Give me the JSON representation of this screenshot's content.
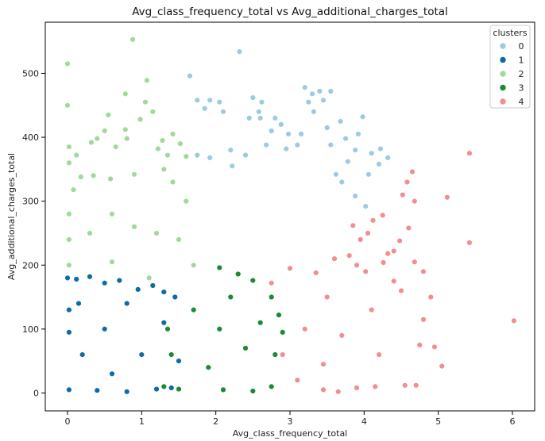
{
  "chart_data": {
    "type": "scatter",
    "title": "Avg_class_frequency_total vs Avg_additional_charges_total",
    "xlabel": "Avg_class_frequency_total",
    "ylabel": "Avg_additional_charges_total",
    "xlim": [
      -0.3,
      6.3
    ],
    "ylim": [
      -28,
      580
    ],
    "xticks": [
      "0",
      "1",
      "2",
      "3",
      "4",
      "5",
      "6"
    ],
    "yticks": [
      "0",
      "100",
      "200",
      "300",
      "400",
      "500"
    ],
    "grid": false,
    "legend": {
      "title": "clusters",
      "placement": "top-right"
    },
    "series": [
      {
        "name": "0",
        "color": "#9ecae1",
        "points": [
          [
            1.65,
            496
          ],
          [
            2.32,
            534
          ],
          [
            1.75,
            458
          ],
          [
            1.85,
            445
          ],
          [
            1.92,
            458
          ],
          [
            2.05,
            455
          ],
          [
            2.1,
            440
          ],
          [
            2.5,
            462
          ],
          [
            2.62,
            455
          ],
          [
            2.58,
            440
          ],
          [
            2.6,
            430
          ],
          [
            2.45,
            430
          ],
          [
            2.8,
            430
          ],
          [
            2.75,
            410
          ],
          [
            2.88,
            420
          ],
          [
            3.2,
            478
          ],
          [
            3.3,
            468
          ],
          [
            3.4,
            472
          ],
          [
            3.55,
            472
          ],
          [
            3.45,
            458
          ],
          [
            3.25,
            455
          ],
          [
            3.32,
            440
          ],
          [
            3.68,
            425
          ],
          [
            3.98,
            432
          ],
          [
            3.5,
            415
          ],
          [
            3.15,
            405
          ],
          [
            3.92,
            405
          ],
          [
            3.75,
            398
          ],
          [
            3.88,
            380
          ],
          [
            4.1,
            375
          ],
          [
            4.22,
            382
          ],
          [
            4.32,
            368
          ],
          [
            4.2,
            358
          ],
          [
            4.06,
            342
          ],
          [
            3.78,
            362
          ],
          [
            3.62,
            342
          ],
          [
            3.7,
            330
          ],
          [
            3.88,
            308
          ],
          [
            4.02,
            292
          ],
          [
            3.55,
            388
          ],
          [
            3.1,
            388
          ],
          [
            2.95,
            382
          ],
          [
            2.68,
            388
          ],
          [
            2.4,
            372
          ],
          [
            2.2,
            380
          ],
          [
            1.75,
            372
          ],
          [
            1.92,
            368
          ],
          [
            2.22,
            355
          ],
          [
            2.98,
            405
          ]
        ]
      },
      {
        "name": "1",
        "color": "#0d6ba8",
        "points": [
          [
            0,
            180
          ],
          [
            0.12,
            178
          ],
          [
            0.3,
            182
          ],
          [
            0.5,
            172
          ],
          [
            0.7,
            176
          ],
          [
            0.95,
            162
          ],
          [
            1.15,
            168
          ],
          [
            1.3,
            158
          ],
          [
            0.02,
            5
          ],
          [
            0.4,
            4
          ],
          [
            0.8,
            2
          ],
          [
            1.2,
            6
          ],
          [
            1.4,
            8
          ],
          [
            0.02,
            95
          ],
          [
            0.02,
            130
          ],
          [
            0.2,
            60
          ],
          [
            0.5,
            100
          ],
          [
            0.8,
            140
          ],
          [
            1,
            60
          ],
          [
            1.3,
            110
          ],
          [
            1.5,
            50
          ],
          [
            1.45,
            150
          ],
          [
            0.6,
            30
          ],
          [
            0.15,
            140
          ]
        ]
      },
      {
        "name": "2",
        "color": "#a1d99b",
        "points": [
          [
            0.88,
            553
          ],
          [
            0,
            515
          ],
          [
            1.07,
            489
          ],
          [
            0,
            450
          ],
          [
            0.78,
            468
          ],
          [
            1.05,
            455
          ],
          [
            0.5,
            410
          ],
          [
            0.55,
            435
          ],
          [
            0.98,
            428
          ],
          [
            1.15,
            440
          ],
          [
            0.78,
            412
          ],
          [
            0.8,
            398
          ],
          [
            0.65,
            385
          ],
          [
            0.4,
            398
          ],
          [
            0.32,
            392
          ],
          [
            0.02,
            385
          ],
          [
            0.02,
            360
          ],
          [
            0.12,
            372
          ],
          [
            0.18,
            338
          ],
          [
            0.08,
            318
          ],
          [
            0.35,
            340
          ],
          [
            0.58,
            335
          ],
          [
            0.9,
            342
          ],
          [
            1.3,
            350
          ],
          [
            1.42,
            330
          ],
          [
            1.28,
            395
          ],
          [
            1.42,
            405
          ],
          [
            1.52,
            390
          ],
          [
            1.22,
            382
          ],
          [
            1.35,
            372
          ],
          [
            1.6,
            370
          ],
          [
            0.02,
            280
          ],
          [
            0.02,
            240
          ],
          [
            0.02,
            200
          ],
          [
            0.3,
            250
          ],
          [
            0.6,
            280
          ],
          [
            0.9,
            260
          ],
          [
            1.2,
            250
          ],
          [
            1.5,
            240
          ],
          [
            1.7,
            200
          ],
          [
            1.1,
            180
          ],
          [
            0.6,
            205
          ],
          [
            1.6,
            300
          ]
        ]
      },
      {
        "name": "3",
        "color": "#1a8a35",
        "points": [
          [
            2.05,
            196
          ],
          [
            2.3,
            186
          ],
          [
            2.5,
            176
          ],
          [
            2.75,
            150
          ],
          [
            2.85,
            122
          ],
          [
            2.9,
            95
          ],
          [
            2.8,
            60
          ],
          [
            2.75,
            10
          ],
          [
            2.5,
            3
          ],
          [
            2.1,
            5
          ],
          [
            1.5,
            6
          ],
          [
            1.3,
            10
          ],
          [
            1.4,
            60
          ],
          [
            1.35,
            100
          ],
          [
            1.7,
            130
          ],
          [
            2.05,
            100
          ],
          [
            2.4,
            70
          ],
          [
            2.2,
            150
          ],
          [
            1.9,
            40
          ],
          [
            2.6,
            110
          ]
        ]
      },
      {
        "name": "4",
        "color": "#f28e8e",
        "points": [
          [
            5.42,
            375
          ],
          [
            5.12,
            306
          ],
          [
            5.42,
            235
          ],
          [
            6.02,
            113
          ],
          [
            4.65,
            346
          ],
          [
            4.58,
            330
          ],
          [
            4.52,
            310
          ],
          [
            4.68,
            300
          ],
          [
            4.25,
            278
          ],
          [
            4.12,
            270
          ],
          [
            4.05,
            250
          ],
          [
            3.85,
            262
          ],
          [
            4.6,
            258
          ],
          [
            4.48,
            238
          ],
          [
            4.4,
            222
          ],
          [
            4.32,
            218
          ],
          [
            4.26,
            204
          ],
          [
            4.4,
            175
          ],
          [
            4.68,
            205
          ],
          [
            4.8,
            190
          ],
          [
            4.5,
            160
          ],
          [
            4.9,
            150
          ],
          [
            4.8,
            115
          ],
          [
            4.75,
            75
          ],
          [
            4.95,
            72
          ],
          [
            5.05,
            42
          ],
          [
            4.7,
            12
          ],
          [
            4.55,
            12
          ],
          [
            4.15,
            10
          ],
          [
            3.9,
            8
          ],
          [
            3.65,
            2
          ],
          [
            3.45,
            5
          ],
          [
            2.75,
            172
          ],
          [
            3.0,
            195
          ],
          [
            3.35,
            188
          ],
          [
            3.6,
            210
          ],
          [
            3.8,
            215
          ],
          [
            3.9,
            200
          ],
          [
            3.5,
            150
          ],
          [
            3.2,
            100
          ],
          [
            2.9,
            60
          ],
          [
            3.1,
            20
          ],
          [
            3.7,
            90
          ],
          [
            4.1,
            130
          ],
          [
            4.2,
            60
          ],
          [
            3.45,
            45
          ],
          [
            4.02,
            190
          ],
          [
            3.95,
            240
          ]
        ]
      }
    ]
  }
}
